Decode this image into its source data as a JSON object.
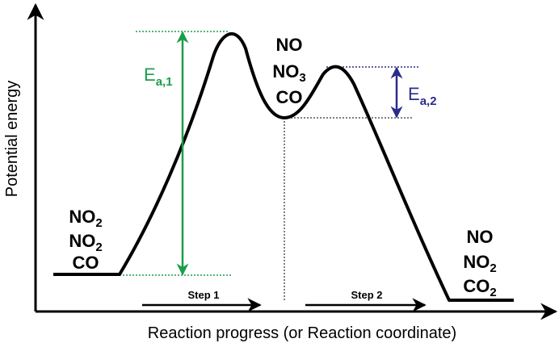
{
  "axes": {
    "y_label": "Potential energy",
    "x_label": "Reaction progress (or Reaction coordinate)"
  },
  "reactants": {
    "line1": {
      "main": "NO",
      "sub": "2"
    },
    "line2": {
      "main": "NO",
      "sub": "2"
    },
    "line3": {
      "main": "CO",
      "sub": ""
    }
  },
  "intermediate": {
    "line1": {
      "main": "NO",
      "sub": ""
    },
    "line2": {
      "main": "NO",
      "sub": "3"
    },
    "line3": {
      "main": "CO",
      "sub": ""
    }
  },
  "products": {
    "line1": {
      "main": "NO",
      "sub": ""
    },
    "line2": {
      "main": "NO",
      "sub": "2"
    },
    "line3": {
      "main": "CO",
      "sub": "2"
    }
  },
  "activation_energies": {
    "ea1": {
      "main": "E",
      "sub": "a,1",
      "color": "#1a9e4a"
    },
    "ea2": {
      "main": "E",
      "sub": "a,2",
      "color": "#2b2b8c"
    }
  },
  "steps": {
    "step1": "Step 1",
    "step2": "Step 2"
  },
  "colors": {
    "curve": "#000000",
    "ea1": "#1a9e4a",
    "ea2": "#2b2b8c"
  }
}
